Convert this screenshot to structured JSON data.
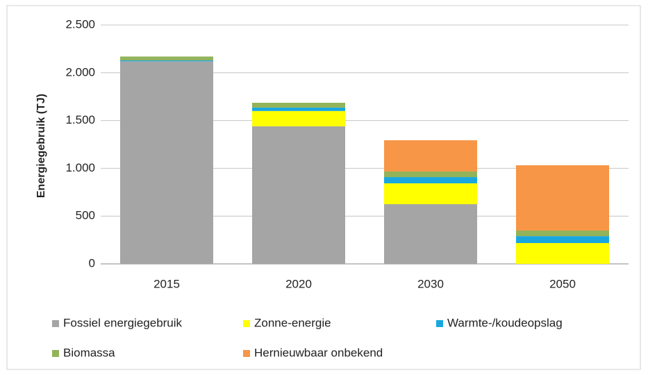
{
  "chart_data": {
    "type": "stacked_bar",
    "y_axis_label": "Energiegebruik (TJ)",
    "categories": [
      "2015",
      "2020",
      "2030",
      "2050"
    ],
    "series": [
      {
        "name": "Fossiel energiegebruik",
        "color": "#a5a5a5",
        "values": [
          2120,
          1440,
          625,
          0
        ]
      },
      {
        "name": "Zonne-energie",
        "color": "#ffff00",
        "values": [
          0,
          160,
          218,
          218
        ]
      },
      {
        "name": "Warmte-/koudeopslag",
        "color": "#1aa7e0",
        "values": [
          10,
          36,
          65,
          72
        ]
      },
      {
        "name": "Biomassa",
        "color": "#92b35a",
        "values": [
          40,
          50,
          59,
          59
        ]
      },
      {
        "name": "Hernieuwbaar onbekend",
        "color": "#f79646",
        "values": [
          0,
          0,
          327,
          683
        ]
      }
    ],
    "ylim": [
      0,
      2500
    ],
    "yticks": [
      0,
      500,
      {
        "value": 1000,
        "label": "1.000"
      },
      {
        "value": 1500,
        "label": "1.500"
      },
      {
        "value": 2000,
        "label": "2.000"
      },
      {
        "value": 2500,
        "label": "2.500"
      }
    ],
    "grid": true,
    "legend": "bottom"
  }
}
